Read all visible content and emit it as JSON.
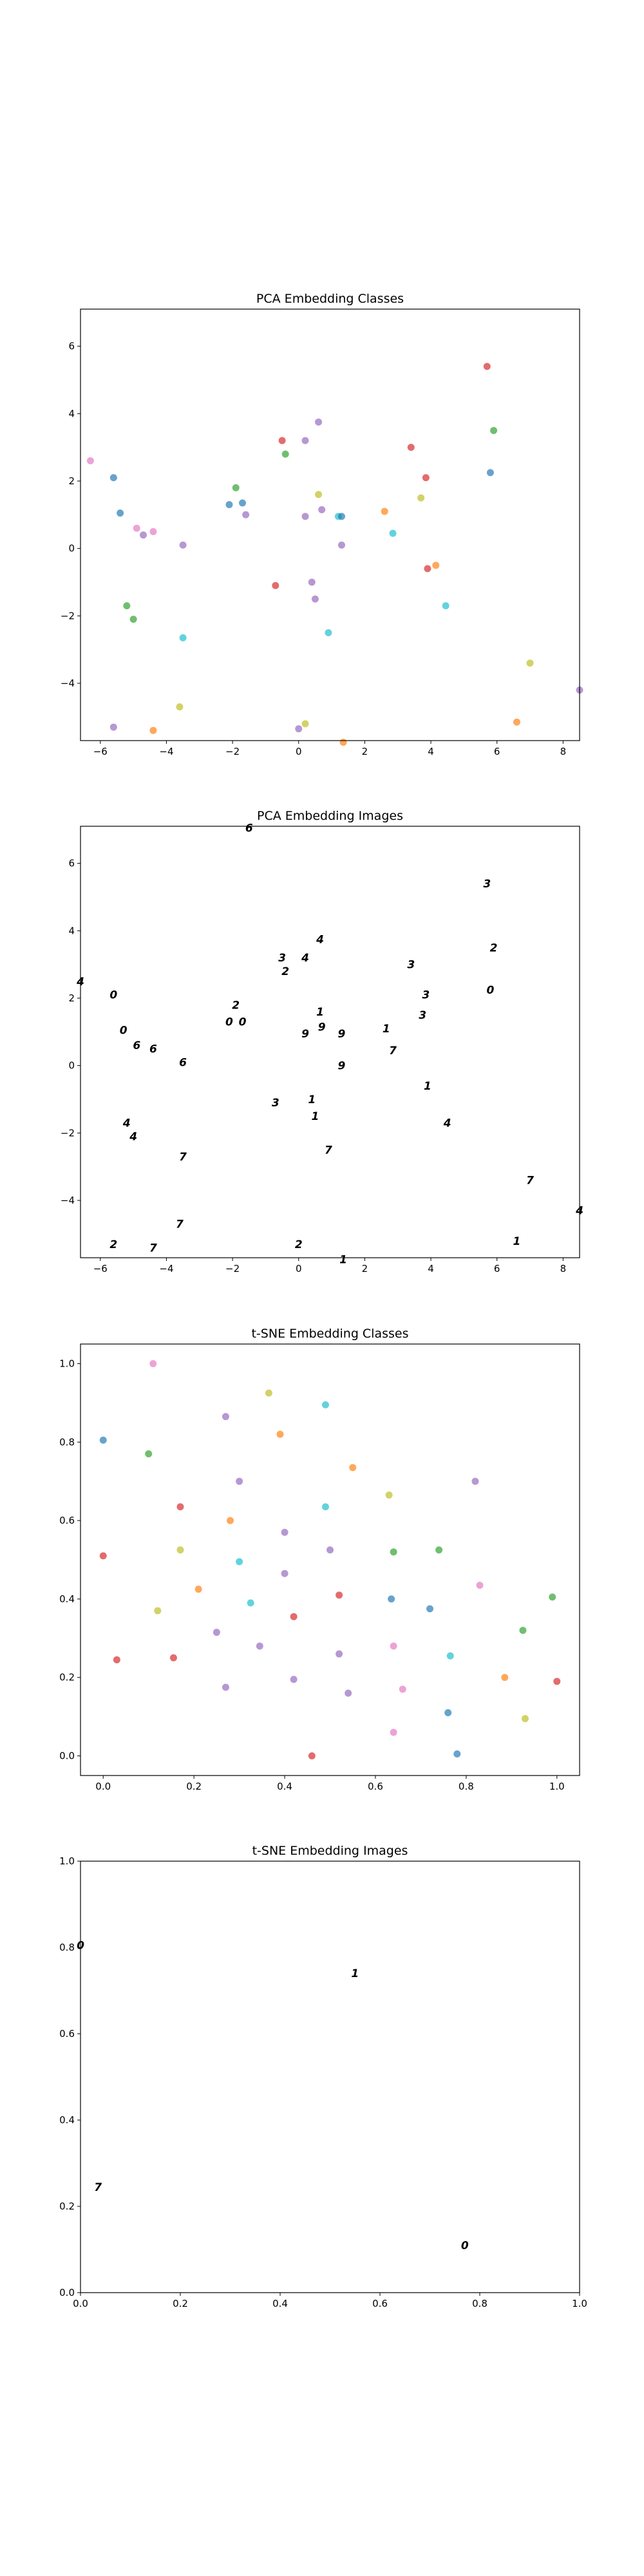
{
  "palette": [
    "#1f77b4",
    "#ff7f0e",
    "#2ca02c",
    "#d62728",
    "#9467bd",
    "#8c564b",
    "#e377c2",
    "#7f7f7f",
    "#bcbd22",
    "#17becf"
  ],
  "chart_data": [
    {
      "type": "scatter",
      "title": "PCA Embedding Classes",
      "xlim": [
        -6.6,
        8.5
      ],
      "ylim": [
        -5.7,
        7.1
      ],
      "xticks": [
        -6,
        -4,
        -2,
        0,
        2,
        4,
        6,
        8
      ],
      "yticks": [
        -4,
        -2,
        0,
        2,
        4,
        6
      ],
      "grid": false,
      "points": [
        {
          "x": -6.3,
          "y": 2.6,
          "c": 6
        },
        {
          "x": -5.6,
          "y": 2.1,
          "c": 0
        },
        {
          "x": -5.4,
          "y": 1.05,
          "c": 0
        },
        {
          "x": -4.9,
          "y": 0.6,
          "c": 6
        },
        {
          "x": -4.7,
          "y": 0.4,
          "c": 4
        },
        {
          "x": -4.4,
          "y": 0.5,
          "c": 6
        },
        {
          "x": -3.5,
          "y": 0.1,
          "c": 4
        },
        {
          "x": -5.2,
          "y": -1.7,
          "c": 2
        },
        {
          "x": -5.0,
          "y": -2.1,
          "c": 2
        },
        {
          "x": -3.5,
          "y": -2.65,
          "c": 9
        },
        {
          "x": -5.6,
          "y": -5.3,
          "c": 4
        },
        {
          "x": -4.4,
          "y": -5.4,
          "c": 1
        },
        {
          "x": -3.6,
          "y": -4.7,
          "c": 8
        },
        {
          "x": -1.9,
          "y": 1.8,
          "c": 2
        },
        {
          "x": -2.1,
          "y": 1.3,
          "c": 0
        },
        {
          "x": -1.7,
          "y": 1.35,
          "c": 0
        },
        {
          "x": -1.6,
          "y": 1.0,
          "c": 4
        },
        {
          "x": -0.5,
          "y": 3.2,
          "c": 3
        },
        {
          "x": -0.4,
          "y": 2.8,
          "c": 2
        },
        {
          "x": -0.7,
          "y": -1.1,
          "c": 3
        },
        {
          "x": 0.2,
          "y": 3.2,
          "c": 4
        },
        {
          "x": 0.6,
          "y": 3.75,
          "c": 4
        },
        {
          "x": 0.6,
          "y": 1.6,
          "c": 8
        },
        {
          "x": 0.2,
          "y": 0.95,
          "c": 4
        },
        {
          "x": 0.7,
          "y": 1.15,
          "c": 4
        },
        {
          "x": 1.2,
          "y": 0.95,
          "c": 9
        },
        {
          "x": 1.3,
          "y": 0.95,
          "c": 0
        },
        {
          "x": 1.3,
          "y": 0.1,
          "c": 4
        },
        {
          "x": 0.4,
          "y": -1.0,
          "c": 4
        },
        {
          "x": 0.5,
          "y": -1.5,
          "c": 4
        },
        {
          "x": 0.9,
          "y": -2.5,
          "c": 9
        },
        {
          "x": 0.0,
          "y": -5.35,
          "c": 4
        },
        {
          "x": 0.2,
          "y": -5.2,
          "c": 8
        },
        {
          "x": 1.35,
          "y": -5.75,
          "c": 1
        },
        {
          "x": 3.4,
          "y": 3.0,
          "c": 3
        },
        {
          "x": 2.6,
          "y": 1.1,
          "c": 1
        },
        {
          "x": 3.7,
          "y": 1.5,
          "c": 8
        },
        {
          "x": 3.85,
          "y": 2.1,
          "c": 3
        },
        {
          "x": 2.85,
          "y": 0.45,
          "c": 9
        },
        {
          "x": 3.9,
          "y": -0.6,
          "c": 3
        },
        {
          "x": 4.15,
          "y": -0.5,
          "c": 1
        },
        {
          "x": 4.45,
          "y": -1.7,
          "c": 9
        },
        {
          "x": 5.7,
          "y": 5.4,
          "c": 3
        },
        {
          "x": 5.9,
          "y": 3.5,
          "c": 2
        },
        {
          "x": 5.8,
          "y": 2.25,
          "c": 0
        },
        {
          "x": 7.0,
          "y": -3.4,
          "c": 8
        },
        {
          "x": 6.6,
          "y": -5.15,
          "c": 1
        },
        {
          "x": 8.5,
          "y": -4.2,
          "c": 4
        }
      ]
    },
    {
      "type": "scatter",
      "title": "PCA Embedding Images",
      "xlim": [
        -6.6,
        8.5
      ],
      "ylim": [
        -5.7,
        7.1
      ],
      "xticks": [
        -6,
        -4,
        -2,
        0,
        2,
        4,
        6,
        8
      ],
      "yticks": [
        -4,
        -2,
        0,
        2,
        4,
        6
      ],
      "grid": false,
      "points": [
        {
          "x": -1.5,
          "y": 7.05,
          "label": "6"
        },
        {
          "x": -6.6,
          "y": 2.5,
          "label": "4"
        },
        {
          "x": -5.6,
          "y": 2.1,
          "label": "0"
        },
        {
          "x": -5.3,
          "y": 1.05,
          "label": "0"
        },
        {
          "x": -4.9,
          "y": 0.6,
          "label": "6"
        },
        {
          "x": -4.4,
          "y": 0.5,
          "label": "6"
        },
        {
          "x": -3.5,
          "y": 0.1,
          "label": "6"
        },
        {
          "x": -5.2,
          "y": -1.7,
          "label": "4"
        },
        {
          "x": -5.0,
          "y": -2.1,
          "label": "4"
        },
        {
          "x": -3.5,
          "y": -2.7,
          "label": "7"
        },
        {
          "x": -3.6,
          "y": -4.7,
          "label": "7"
        },
        {
          "x": -5.6,
          "y": -5.3,
          "label": "2"
        },
        {
          "x": -4.4,
          "y": -5.4,
          "label": "7"
        },
        {
          "x": -1.9,
          "y": 1.8,
          "label": "2"
        },
        {
          "x": -2.1,
          "y": 1.3,
          "label": "0"
        },
        {
          "x": -1.7,
          "y": 1.3,
          "label": "0"
        },
        {
          "x": -0.5,
          "y": 3.2,
          "label": "3"
        },
        {
          "x": -0.4,
          "y": 2.8,
          "label": "2"
        },
        {
          "x": 0.2,
          "y": 3.2,
          "label": "4"
        },
        {
          "x": 0.65,
          "y": 3.75,
          "label": "4"
        },
        {
          "x": 0.65,
          "y": 1.6,
          "label": "1"
        },
        {
          "x": 0.2,
          "y": 0.95,
          "label": "9"
        },
        {
          "x": 0.7,
          "y": 1.15,
          "label": "9"
        },
        {
          "x": 1.3,
          "y": 0.95,
          "label": "9"
        },
        {
          "x": 1.3,
          "y": 0.0,
          "label": "9"
        },
        {
          "x": -0.7,
          "y": -1.1,
          "label": "3"
        },
        {
          "x": 0.4,
          "y": -1.0,
          "label": "1"
        },
        {
          "x": 0.5,
          "y": -1.5,
          "label": "1"
        },
        {
          "x": 0.9,
          "y": -2.5,
          "label": "7"
        },
        {
          "x": 0.0,
          "y": -5.3,
          "label": "2"
        },
        {
          "x": 1.35,
          "y": -5.75,
          "label": "1"
        },
        {
          "x": 3.4,
          "y": 3.0,
          "label": "3"
        },
        {
          "x": 3.85,
          "y": 2.1,
          "label": "3"
        },
        {
          "x": 3.75,
          "y": 1.5,
          "label": "3"
        },
        {
          "x": 2.65,
          "y": 1.1,
          "label": "1"
        },
        {
          "x": 2.85,
          "y": 0.45,
          "label": "7"
        },
        {
          "x": 3.9,
          "y": -0.6,
          "label": "1"
        },
        {
          "x": 4.5,
          "y": -1.7,
          "label": "4"
        },
        {
          "x": 5.7,
          "y": 5.4,
          "label": "3"
        },
        {
          "x": 5.9,
          "y": 3.5,
          "label": "2"
        },
        {
          "x": 5.8,
          "y": 2.25,
          "label": "0"
        },
        {
          "x": 7.0,
          "y": -3.4,
          "label": "7"
        },
        {
          "x": 6.6,
          "y": -5.2,
          "label": "1"
        },
        {
          "x": 8.5,
          "y": -4.3,
          "label": "4"
        }
      ]
    },
    {
      "type": "scatter",
      "title": "t-SNE Embedding Classes",
      "xlim": [
        -0.05,
        1.05
      ],
      "ylim": [
        -0.05,
        1.05
      ],
      "xticks": [
        0.0,
        0.2,
        0.4,
        0.6,
        0.8,
        1.0
      ],
      "yticks": [
        0.0,
        0.2,
        0.4,
        0.6,
        0.8,
        1.0
      ],
      "grid": false,
      "points": [
        {
          "x": 0.11,
          "y": 1.0,
          "c": 6
        },
        {
          "x": 0.0,
          "y": 0.805,
          "c": 0
        },
        {
          "x": 0.1,
          "y": 0.77,
          "c": 2
        },
        {
          "x": 0.27,
          "y": 0.865,
          "c": 4
        },
        {
          "x": 0.365,
          "y": 0.925,
          "c": 8
        },
        {
          "x": 0.39,
          "y": 0.82,
          "c": 1
        },
        {
          "x": 0.49,
          "y": 0.895,
          "c": 9
        },
        {
          "x": 0.55,
          "y": 0.735,
          "c": 1
        },
        {
          "x": 0.3,
          "y": 0.7,
          "c": 4
        },
        {
          "x": 0.17,
          "y": 0.635,
          "c": 3
        },
        {
          "x": 0.28,
          "y": 0.6,
          "c": 1
        },
        {
          "x": 0.49,
          "y": 0.635,
          "c": 9
        },
        {
          "x": 0.63,
          "y": 0.665,
          "c": 8
        },
        {
          "x": 0.82,
          "y": 0.7,
          "c": 4
        },
        {
          "x": 0.0,
          "y": 0.51,
          "c": 3
        },
        {
          "x": 0.17,
          "y": 0.525,
          "c": 8
        },
        {
          "x": 0.3,
          "y": 0.495,
          "c": 9
        },
        {
          "x": 0.4,
          "y": 0.57,
          "c": 4
        },
        {
          "x": 0.5,
          "y": 0.525,
          "c": 4
        },
        {
          "x": 0.64,
          "y": 0.52,
          "c": 2
        },
        {
          "x": 0.74,
          "y": 0.525,
          "c": 2
        },
        {
          "x": 0.12,
          "y": 0.37,
          "c": 8
        },
        {
          "x": 0.21,
          "y": 0.425,
          "c": 1
        },
        {
          "x": 0.325,
          "y": 0.39,
          "c": 9
        },
        {
          "x": 0.4,
          "y": 0.465,
          "c": 4
        },
        {
          "x": 0.52,
          "y": 0.41,
          "c": 3
        },
        {
          "x": 0.635,
          "y": 0.4,
          "c": 0
        },
        {
          "x": 0.72,
          "y": 0.375,
          "c": 0
        },
        {
          "x": 0.83,
          "y": 0.435,
          "c": 6
        },
        {
          "x": 0.99,
          "y": 0.405,
          "c": 2
        },
        {
          "x": 0.03,
          "y": 0.245,
          "c": 3
        },
        {
          "x": 0.155,
          "y": 0.25,
          "c": 3
        },
        {
          "x": 0.25,
          "y": 0.315,
          "c": 4
        },
        {
          "x": 0.345,
          "y": 0.28,
          "c": 4
        },
        {
          "x": 0.42,
          "y": 0.355,
          "c": 3
        },
        {
          "x": 0.52,
          "y": 0.26,
          "c": 4
        },
        {
          "x": 0.64,
          "y": 0.28,
          "c": 6
        },
        {
          "x": 0.765,
          "y": 0.255,
          "c": 9
        },
        {
          "x": 0.925,
          "y": 0.32,
          "c": 2
        },
        {
          "x": 0.27,
          "y": 0.175,
          "c": 4
        },
        {
          "x": 0.42,
          "y": 0.195,
          "c": 4
        },
        {
          "x": 0.54,
          "y": 0.16,
          "c": 4
        },
        {
          "x": 0.66,
          "y": 0.17,
          "c": 6
        },
        {
          "x": 0.885,
          "y": 0.2,
          "c": 1
        },
        {
          "x": 1.0,
          "y": 0.19,
          "c": 3
        },
        {
          "x": 0.46,
          "y": 0.0,
          "c": 3
        },
        {
          "x": 0.64,
          "y": 0.06,
          "c": 6
        },
        {
          "x": 0.76,
          "y": 0.11,
          "c": 0
        },
        {
          "x": 0.78,
          "y": 0.005,
          "c": 0
        },
        {
          "x": 0.93,
          "y": 0.095,
          "c": 8
        }
      ]
    },
    {
      "type": "scatter",
      "title": "t-SNE Embedding Images",
      "xlim": [
        0.0,
        1.0
      ],
      "ylim": [
        0.0,
        1.0
      ],
      "xticks": [
        0.0,
        0.2,
        0.4,
        0.6,
        0.8,
        1.0
      ],
      "yticks": [
        0.0,
        0.2,
        0.4,
        0.6,
        0.8,
        1.0
      ],
      "grid": false,
      "points": [
        {
          "x": 0.0,
          "y": 0.805,
          "label": "0"
        },
        {
          "x": 0.55,
          "y": 0.74,
          "label": "1"
        },
        {
          "x": 0.035,
          "y": 0.245,
          "label": "7"
        },
        {
          "x": 0.77,
          "y": 0.11,
          "label": "0"
        }
      ]
    }
  ]
}
